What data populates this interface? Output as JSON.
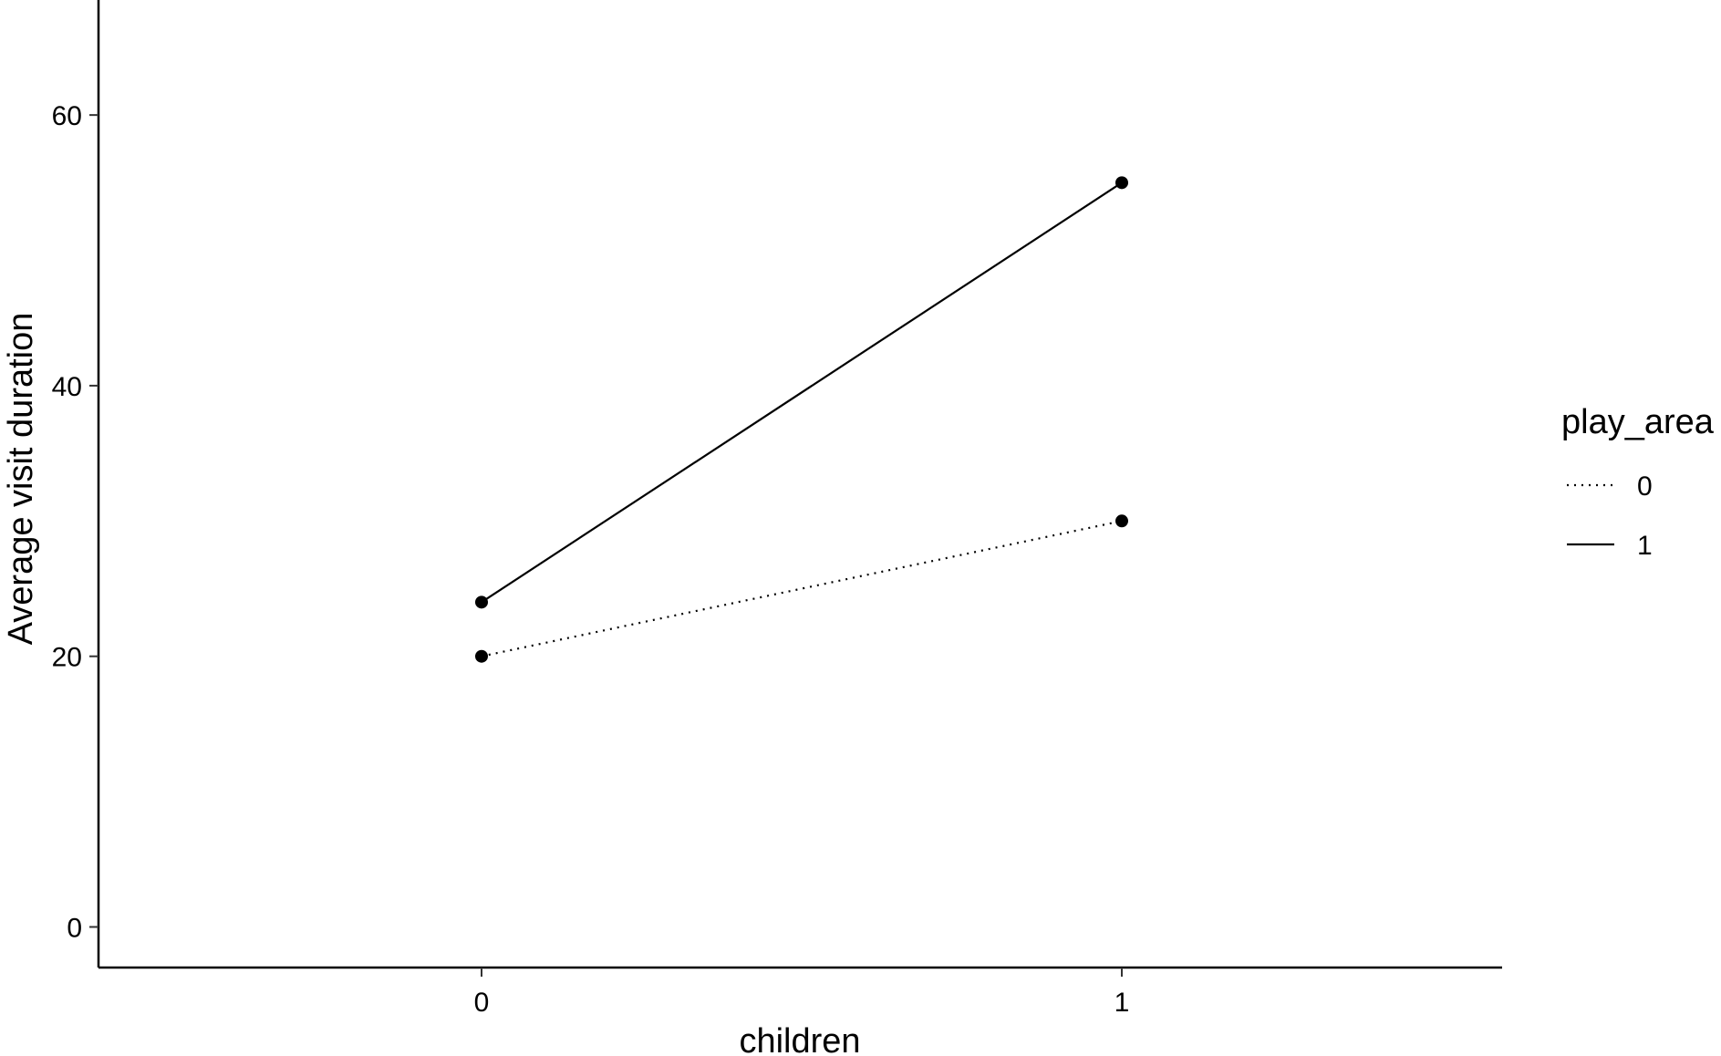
{
  "chart_data": {
    "type": "line",
    "title": "",
    "xlabel": "children",
    "ylabel": "Average visit duration",
    "categories": [
      "0",
      "1"
    ],
    "x_ticks": [
      "0",
      "1"
    ],
    "y_ticks": [
      "0",
      "20",
      "40",
      "60"
    ],
    "ylim": [
      -3,
      68.5
    ],
    "grid": false,
    "legend": {
      "title": "play_area",
      "placement": "right",
      "entries": [
        "0",
        "1"
      ]
    },
    "series": [
      {
        "name": "0",
        "values": [
          20,
          30
        ],
        "line_style": "dotted",
        "color": "#000000"
      },
      {
        "name": "1",
        "values": [
          24,
          55
        ],
        "line_style": "solid",
        "color": "#000000"
      }
    ]
  }
}
